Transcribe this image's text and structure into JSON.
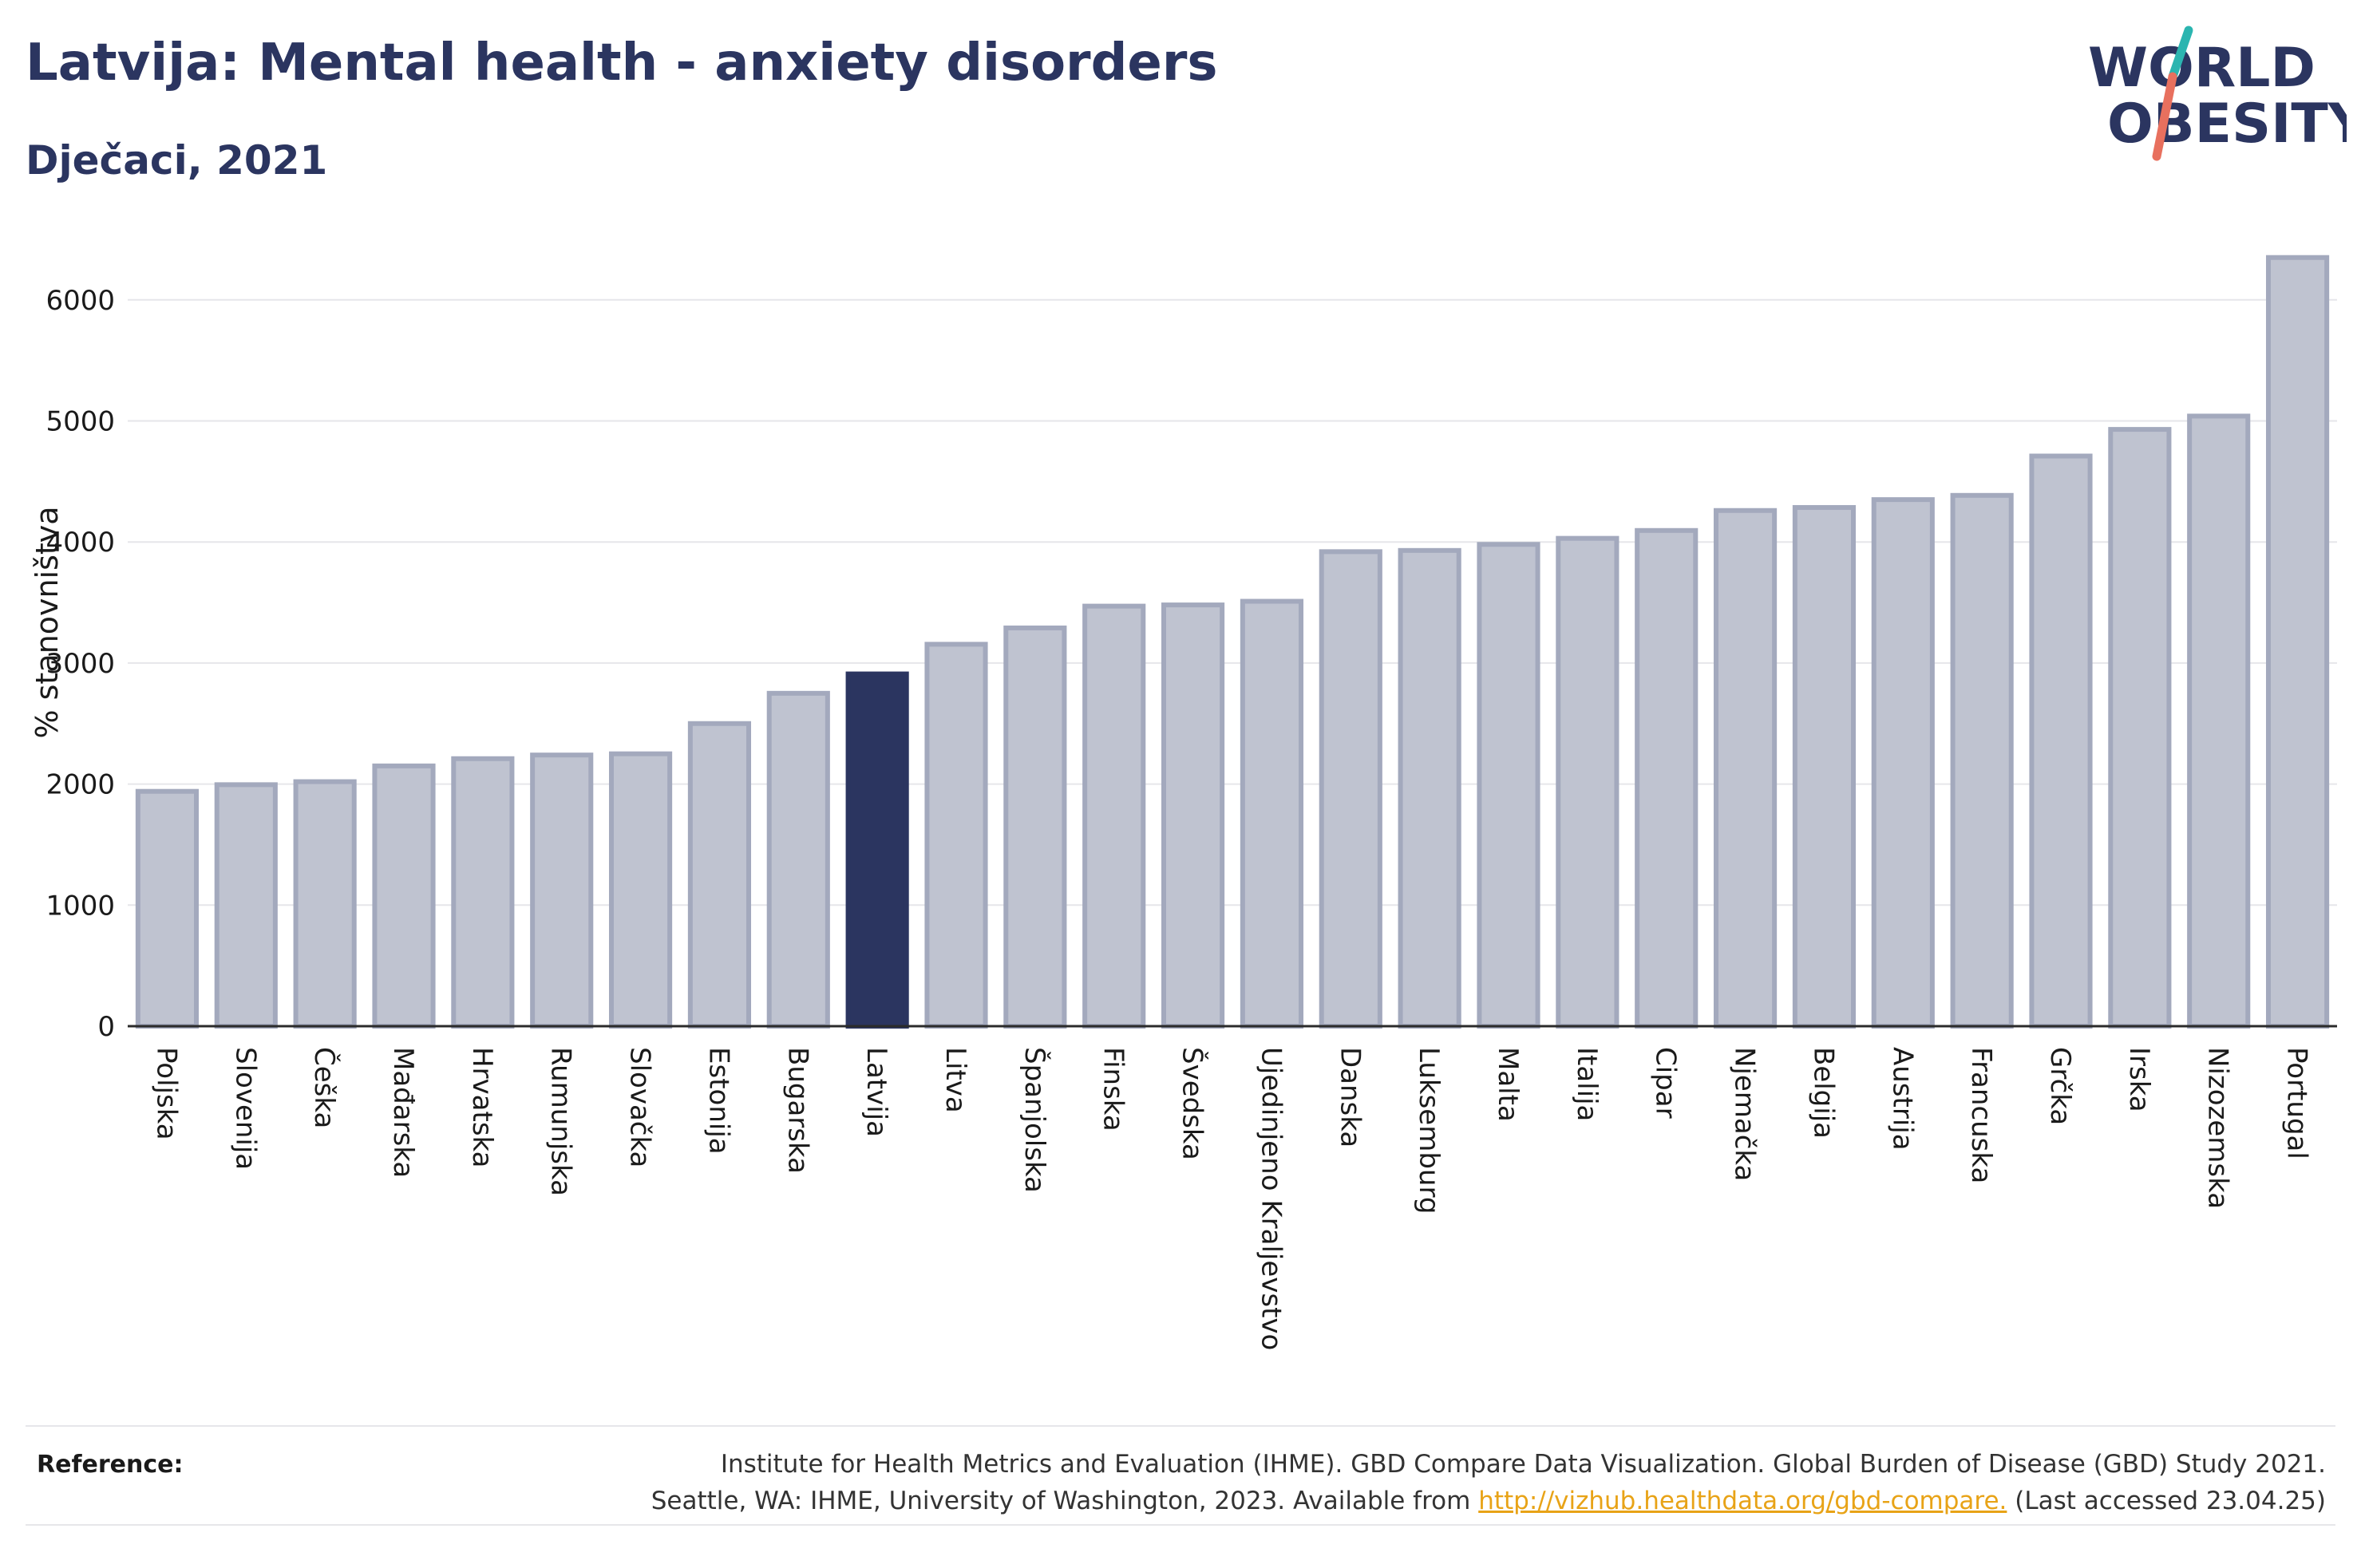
{
  "header": {
    "title": "Latvija: Mental health - anxiety disorders",
    "subtitle": "Dječaci, 2021"
  },
  "logo": {
    "line1": "WORLD",
    "line2": "OBESITY",
    "colors": {
      "text": "#2b3560",
      "slash_teal": "#2bb5b0",
      "slash_coral": "#e8705e"
    }
  },
  "footer": {
    "label": "Reference:",
    "line1": "Institute for Health Metrics and Evaluation (IHME). GBD Compare Data Visualization. Global Burden of Disease (GBD) Study 2021.",
    "line2_prefix": "Seattle, WA: IHME, University of Washington, 2023. Available from ",
    "link_text": "http://vizhub.healthdata.org/gbd-compare.",
    "line2_suffix": " (Last accessed 23.04.25)"
  },
  "chart_data": {
    "type": "bar",
    "ylabel": "% stanovništva",
    "xlabel": "",
    "ylim": [
      0,
      6500
    ],
    "yticks": [
      0,
      1000,
      2000,
      3000,
      4000,
      5000,
      6000
    ],
    "grid": true,
    "legend": "none",
    "highlight": "Latvija",
    "colors": {
      "bar": "#bfc3d0",
      "bar_border": "#a3a9bd",
      "highlight": "#2b3560",
      "grid": "#e6e6ea",
      "axis": "#2b2b2b"
    },
    "categories": [
      "Poljska",
      "Slovenija",
      "Češka",
      "Mađarska",
      "Hrvatska",
      "Rumunjska",
      "Slovačka",
      "Estonija",
      "Bugarska",
      "Latvija",
      "Litva",
      "Španjolska",
      "Finska",
      "Švedska",
      "Ujedinjeno Kraljevstvo",
      "Danska",
      "Luksemburg",
      "Malta",
      "Italija",
      "Cipar",
      "Njemačka",
      "Belgija",
      "Austrija",
      "Francuska",
      "Grčka",
      "Irska",
      "Nizozemska",
      "Portugal"
    ],
    "values": [
      1940,
      1995,
      2020,
      2150,
      2210,
      2240,
      2250,
      2500,
      2750,
      2910,
      3155,
      3290,
      3470,
      3480,
      3510,
      3920,
      3930,
      3980,
      4030,
      4095,
      4260,
      4285,
      4350,
      4385,
      4710,
      4930,
      5040,
      6350
    ]
  }
}
